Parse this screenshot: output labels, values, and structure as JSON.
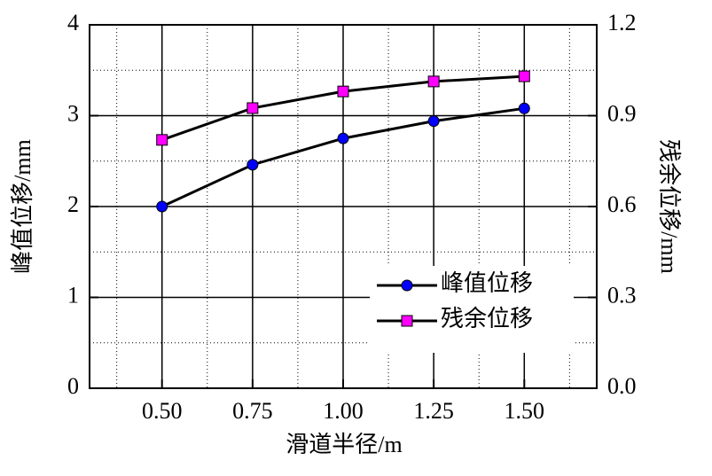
{
  "chart_data": {
    "type": "line",
    "x_label": "滑道半径/m",
    "y_label": "峰值位移/mm",
    "y2_label": "残余位移/mm",
    "x": [
      0.5,
      0.75,
      1.0,
      1.25,
      1.5
    ],
    "series": [
      {
        "name": "峰值位移",
        "color": "#0000ff",
        "marker": "circle",
        "values": [
          2.0,
          2.46,
          2.75,
          2.94,
          3.08
        ]
      },
      {
        "name": "残余位移",
        "color": "#ff00ff",
        "marker": "square",
        "axis": "y2",
        "values": [
          0.82,
          0.925,
          0.98,
          1.013,
          1.03
        ]
      }
    ],
    "xlim": [
      0.3,
      1.7
    ],
    "xticks": [
      {
        "value": 0.5,
        "label": "0.50"
      },
      0.75,
      {
        "value": 1.0,
        "label": "1.00"
      },
      1.25,
      {
        "value": 1.5,
        "label": "1.50"
      }
    ],
    "x_minor_ticks": [
      0.375,
      0.625,
      0.875,
      1.125,
      1.375,
      1.625
    ],
    "ylim": [
      0,
      4
    ],
    "yticks": [
      0,
      1,
      2,
      3,
      4
    ],
    "y_minor_ticks": [
      0.5,
      1.5,
      2.5,
      3.5
    ],
    "y2lim": [
      0,
      1.2
    ],
    "y2ticks": [
      {
        "value": 0,
        "label": "0.0"
      },
      0.3,
      0.6,
      0.9,
      1.2
    ],
    "grid": true,
    "legend": "lower right"
  }
}
